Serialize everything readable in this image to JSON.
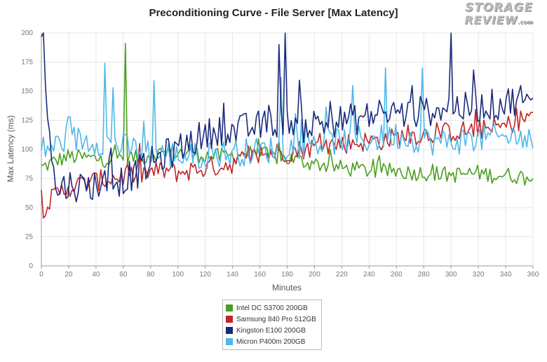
{
  "title": "Preconditioning Curve - File Server [Max Latency]",
  "logo": {
    "line1": "STORAGE",
    "line2": "REVIEW",
    "suffix": ".com"
  },
  "chart_data": {
    "type": "line",
    "title": "Preconditioning Curve - File Server [Max Latency]",
    "xlabel": "Minutes",
    "ylabel": "Max Latency (ms)",
    "xlim": [
      0,
      360
    ],
    "ylim": [
      0,
      200
    ],
    "xticks": [
      0,
      20,
      40,
      60,
      80,
      100,
      120,
      140,
      160,
      180,
      200,
      220,
      240,
      260,
      280,
      300,
      320,
      340,
      360
    ],
    "yticks": [
      0,
      25,
      50,
      75,
      100,
      125,
      150,
      175,
      200
    ],
    "grid": true,
    "legend_position": "bottom-center",
    "x": [
      0,
      10,
      20,
      30,
      40,
      50,
      60,
      70,
      80,
      90,
      100,
      110,
      120,
      130,
      140,
      150,
      160,
      170,
      180,
      190,
      200,
      210,
      220,
      230,
      240,
      250,
      260,
      270,
      280,
      290,
      300,
      310,
      320,
      330,
      340,
      350,
      360
    ],
    "series": [
      {
        "name": "Intel DC S3700 200GB",
        "color": "#4a9e1f",
        "values": [
          84,
          90,
          94,
          93,
          92,
          91,
          95,
          92,
          96,
          97,
          98,
          96,
          95,
          94,
          95,
          97,
          96,
          94,
          92,
          90,
          88,
          86,
          84,
          83,
          82,
          81,
          82,
          80,
          80,
          79,
          78,
          79,
          80,
          78,
          78,
          77,
          74
        ]
      },
      {
        "name": "Samsung 840 Pro 512GB",
        "color": "#c0252a",
        "values": [
          48,
          60,
          68,
          70,
          73,
          75,
          77,
          78,
          80,
          82,
          80,
          82,
          84,
          86,
          88,
          92,
          95,
          97,
          98,
          100,
          102,
          104,
          105,
          106,
          107,
          108,
          110,
          112,
          113,
          114,
          115,
          116,
          117,
          118,
          120,
          125,
          130
        ]
      },
      {
        "name": "Kingston E100 200GB",
        "color": "#1a2a7c",
        "values": [
          200,
          64,
          70,
          68,
          70,
          72,
          74,
          80,
          88,
          95,
          100,
          108,
          112,
          118,
          115,
          118,
          120,
          122,
          128,
          118,
          122,
          123,
          125,
          126,
          128,
          130,
          132,
          130,
          133,
          135,
          138,
          135,
          137,
          138,
          140,
          145,
          135
        ]
      },
      {
        "name": "Micron P400m 200GB",
        "color": "#4db8ea",
        "values": [
          100,
          103,
          110,
          108,
          107,
          105,
          102,
          100,
          98,
          96,
          95,
          94,
          95,
          96,
          97,
          98,
          99,
          100,
          102,
          104,
          105,
          106,
          108,
          110,
          108,
          110,
          112,
          110,
          108,
          106,
          107,
          108,
          109,
          110,
          110,
          112,
          105
        ]
      }
    ],
    "spikes": [
      {
        "series": "Kingston E100 200GB",
        "x": 1,
        "y": 200
      },
      {
        "series": "Kingston E100 200GB",
        "x": 174,
        "y": 190
      },
      {
        "series": "Kingston E100 200GB",
        "x": 179,
        "y": 200
      },
      {
        "series": "Kingston E100 200GB",
        "x": 300,
        "y": 200
      },
      {
        "series": "Intel DC S3700 200GB",
        "x": 62,
        "y": 191
      },
      {
        "series": "Micron P400m 200GB",
        "x": 46,
        "y": 174
      },
      {
        "series": "Micron P400m 200GB",
        "x": 52,
        "y": 153
      },
      {
        "series": "Micron P400m 200GB",
        "x": 83,
        "y": 159
      },
      {
        "series": "Micron P400m 200GB",
        "x": 176,
        "y": 162
      },
      {
        "series": "Micron P400m 200GB",
        "x": 228,
        "y": 155
      },
      {
        "series": "Micron P400m 200GB",
        "x": 252,
        "y": 170
      },
      {
        "series": "Micron P400m 200GB",
        "x": 279,
        "y": 170
      }
    ]
  }
}
